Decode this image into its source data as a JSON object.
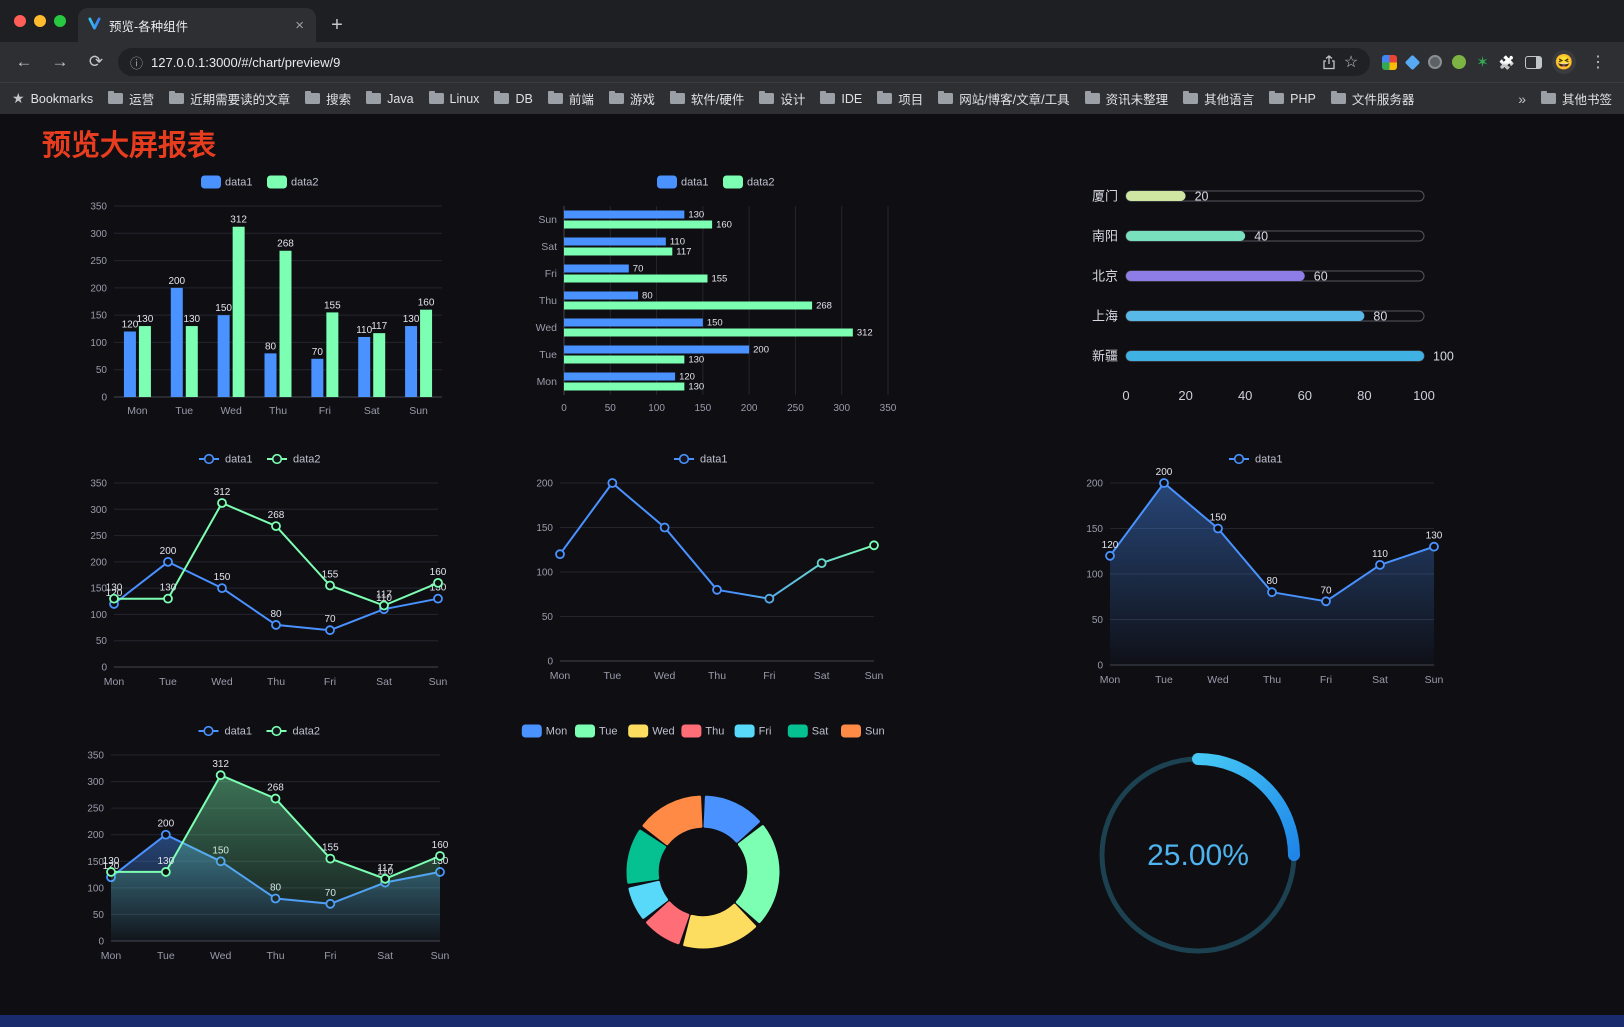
{
  "browser": {
    "tab_title": "预览-各种组件",
    "url": "127.0.0.1:3000/#/chart/preview/9",
    "bookmarks_label": "Bookmarks",
    "bookmarks": [
      "运营",
      "近期需要读的文章",
      "搜索",
      "Java",
      "Linux",
      "DB",
      "前端",
      "游戏",
      "软件/硬件",
      "设计",
      "IDE",
      "项目",
      "网站/博客/文章/工具",
      "资讯未整理",
      "其他语言",
      "PHP",
      "文件服务器"
    ],
    "bookmarks_overflow": "»",
    "other_bookmarks": "其他书签"
  },
  "page": {
    "title": "预览大屏报表"
  },
  "theme": {
    "page_bg": "#0e0e13",
    "title_color": "#e73c1e",
    "blue": "#4992ff",
    "green": "#7cffb2",
    "bottom_bar": "#1a2b6d"
  },
  "chart_data": [
    {
      "id": "grouped-bar",
      "type": "bar",
      "title": "",
      "categories": [
        "Mon",
        "Tue",
        "Wed",
        "Thu",
        "Fri",
        "Sat",
        "Sun"
      ],
      "series": [
        {
          "name": "data1",
          "color": "#4992ff",
          "values": [
            120,
            200,
            150,
            80,
            70,
            110,
            130
          ]
        },
        {
          "name": "data2",
          "color": "#7cffb2",
          "values": [
            130,
            130,
            312,
            268,
            155,
            117,
            160
          ]
        }
      ],
      "ylim": [
        0,
        350
      ],
      "ytick": 50,
      "legend_position": "top",
      "grid": true
    },
    {
      "id": "horizontal-bar",
      "type": "bar-horizontal",
      "categories": [
        "Mon",
        "Tue",
        "Wed",
        "Thu",
        "Fri",
        "Sat",
        "Sun"
      ],
      "series": [
        {
          "name": "data1",
          "color": "#4992ff",
          "values": [
            120,
            200,
            150,
            80,
            70,
            110,
            130
          ]
        },
        {
          "name": "data2",
          "color": "#7cffb2",
          "values": [
            130,
            130,
            312,
            268,
            155,
            117,
            160
          ]
        }
      ],
      "xlim": [
        0,
        350
      ],
      "xtick": 50,
      "legend_position": "top",
      "grid": true
    },
    {
      "id": "city-progress",
      "type": "progress",
      "items": [
        {
          "label": "厦门",
          "value": 20,
          "color": "#cfe6a2"
        },
        {
          "label": "南阳",
          "value": 40,
          "color": "#79e0bd"
        },
        {
          "label": "北京",
          "value": 60,
          "color": "#8e7de6"
        },
        {
          "label": "上海",
          "value": 80,
          "color": "#58b8e8"
        },
        {
          "label": "新疆",
          "value": 100,
          "color": "#3fb1e3"
        }
      ],
      "xlim": [
        0,
        100
      ],
      "axis_labels": [
        "0",
        "20",
        "40",
        "60",
        "80",
        "100"
      ]
    },
    {
      "id": "two-series-line",
      "type": "line",
      "categories": [
        "Mon",
        "Tue",
        "Wed",
        "Thu",
        "Fri",
        "Sat",
        "Sun"
      ],
      "series": [
        {
          "name": "data1",
          "color": "#4992ff",
          "values": [
            120,
            200,
            150,
            80,
            70,
            110,
            130
          ]
        },
        {
          "name": "data2",
          "color": "#7cffb2",
          "values": [
            130,
            130,
            312,
            268,
            155,
            117,
            160
          ]
        }
      ],
      "ylim": [
        0,
        350
      ],
      "ytick": 50,
      "point_labels": true,
      "legend_position": "top",
      "grid": true
    },
    {
      "id": "gradient-line",
      "type": "line",
      "categories": [
        "Mon",
        "Tue",
        "Wed",
        "Thu",
        "Fri",
        "Sat",
        "Sun"
      ],
      "series": [
        {
          "name": "data1",
          "color": "#4992ff",
          "color_end": "#7cffb2",
          "gradient": true,
          "values": [
            120,
            200,
            150,
            80,
            70,
            110,
            130
          ]
        }
      ],
      "ylim": [
        0,
        200
      ],
      "ytick": 50,
      "point_labels": false,
      "legend_position": "top",
      "grid": true
    },
    {
      "id": "area-line",
      "type": "line",
      "categories": [
        "Mon",
        "Tue",
        "Wed",
        "Thu",
        "Fri",
        "Sat",
        "Sun"
      ],
      "series": [
        {
          "name": "data1",
          "color": "#4992ff",
          "area": true,
          "values": [
            120,
            200,
            150,
            80,
            70,
            110,
            130
          ]
        }
      ],
      "ylim": [
        0,
        200
      ],
      "ytick": 50,
      "point_labels": true,
      "legend_position": "top",
      "grid": true
    },
    {
      "id": "two-series-area-line",
      "type": "line",
      "categories": [
        "Mon",
        "Tue",
        "Wed",
        "Thu",
        "Fri",
        "Sat",
        "Sun"
      ],
      "series": [
        {
          "name": "data1",
          "color": "#4992ff",
          "area": true,
          "values": [
            120,
            200,
            150,
            80,
            70,
            110,
            130
          ]
        },
        {
          "name": "data2",
          "color": "#7cffb2",
          "area": true,
          "values": [
            130,
            130,
            312,
            268,
            155,
            117,
            160
          ]
        }
      ],
      "ylim": [
        0,
        350
      ],
      "ytick": 50,
      "point_labels": true,
      "legend_position": "top",
      "grid": true
    },
    {
      "id": "weekday-donut",
      "type": "pie",
      "legend_position": "top",
      "items": [
        {
          "label": "Mon",
          "value": 120,
          "color": "#4992ff"
        },
        {
          "label": "Tue",
          "value": 200,
          "color": "#7cffb2"
        },
        {
          "label": "Wed",
          "value": 150,
          "color": "#fddd60"
        },
        {
          "label": "Thu",
          "value": 80,
          "color": "#ff6e76"
        },
        {
          "label": "Fri",
          "value": 70,
          "color": "#58d9f9"
        },
        {
          "label": "Sat",
          "value": 110,
          "color": "#05c091"
        },
        {
          "label": "Sun",
          "value": 130,
          "color": "#ff8a45"
        }
      ],
      "inner_radius_ratio": 0.61
    },
    {
      "id": "percent-gauge",
      "type": "gauge",
      "value": 25,
      "display": "25.00%",
      "color": "#2ba7ea",
      "track_color": "#1c4150"
    }
  ]
}
